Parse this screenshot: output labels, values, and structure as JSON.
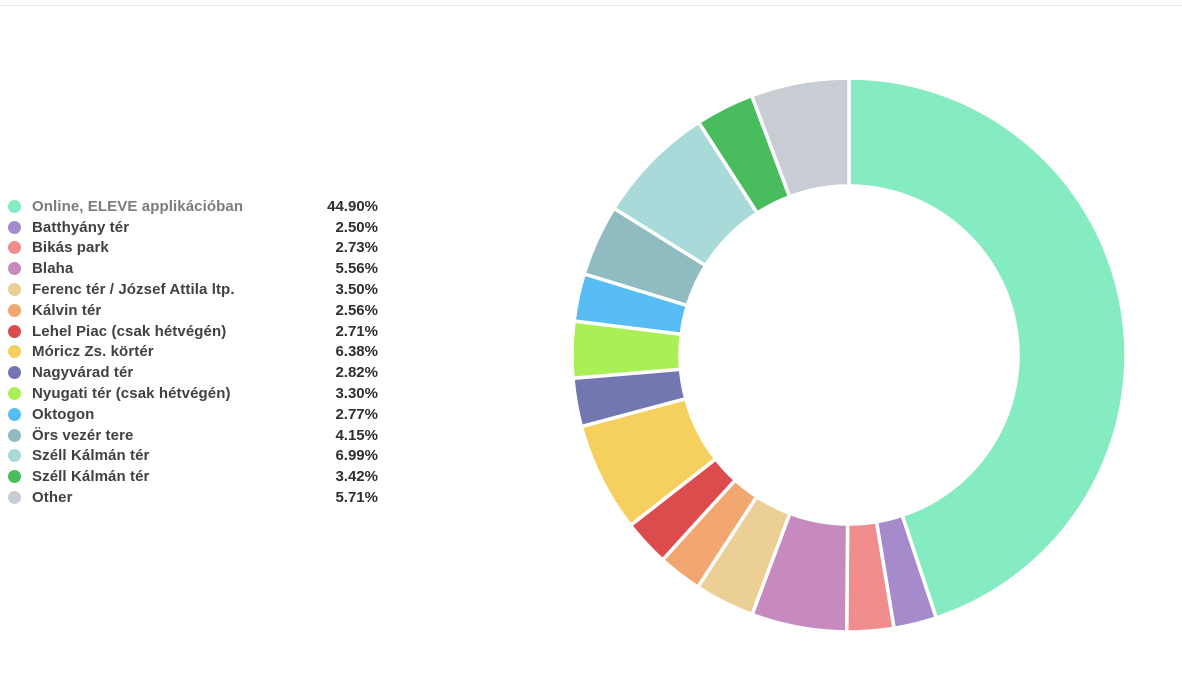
{
  "page": {
    "background_color": "#ffffff",
    "top_border_color": "#ebebeb"
  },
  "chart_data": {
    "type": "pie",
    "subtype": "donut",
    "title": "",
    "legend_position": "left",
    "start_angle_deg": 0,
    "direction": "clockwise",
    "inner_radius_ratio": 0.61,
    "categories": [
      "Online, ELEVE applikációban",
      "Batthyány tér",
      "Bikás park",
      "Blaha",
      "Ferenc tér / József Attila ltp.",
      "Kálvin tér",
      "Lehel Piac (csak hétvégén)",
      "Móricz Zs. körtér",
      "Nagyvárad tér",
      "Nyugati tér (csak hétvégén)",
      "Oktogon",
      "Örs vezér tere",
      "Széll Kálmán tér",
      "Széll Kálmán tér",
      "Other"
    ],
    "values": [
      44.9,
      2.5,
      2.73,
      5.56,
      3.5,
      2.56,
      2.71,
      6.38,
      2.82,
      3.3,
      2.77,
      4.15,
      6.99,
      3.42,
      5.71
    ],
    "display_values": [
      "44.90%",
      "2.50%",
      "2.73%",
      "5.56%",
      "3.50%",
      "2.56%",
      "2.71%",
      "6.38%",
      "2.82%",
      "3.30%",
      "2.77%",
      "4.15%",
      "6.99%",
      "3.42%",
      "5.71%"
    ],
    "colors": [
      "#85EBC1",
      "#A68BCC",
      "#F18C8C",
      "#C78ABE",
      "#EBCF94",
      "#F3A770",
      "#DD4C4C",
      "#F5D05E",
      "#7276B1",
      "#ABEF57",
      "#58BCF5",
      "#90BCC1",
      "#A9DADA",
      "#49BC5E",
      "#C7CDD3"
    ],
    "slice_gap_color": "#ffffff"
  }
}
